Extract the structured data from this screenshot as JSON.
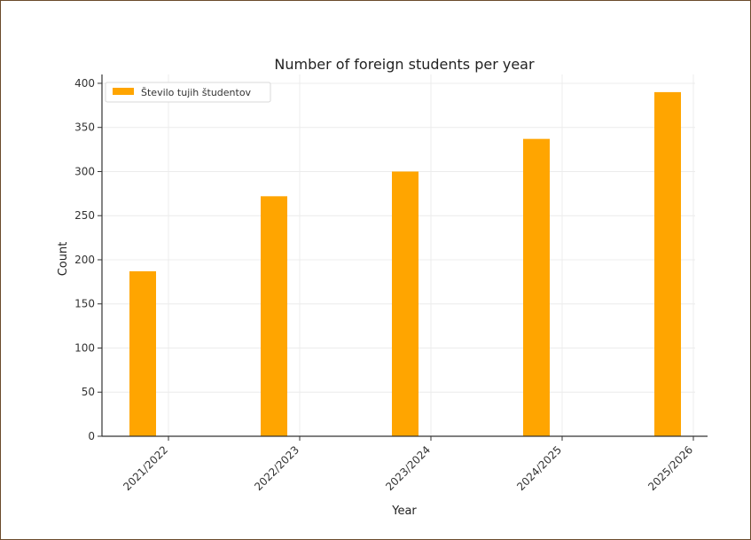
{
  "chart_data": {
    "type": "bar",
    "title": "Number of foreign students per year",
    "xlabel": "Year",
    "ylabel": "Count",
    "categories": [
      "2021/2022",
      "2022/2023",
      "2023/2024",
      "2024/2025",
      "2025/2026"
    ],
    "series": [
      {
        "name": "Število tujih študentov",
        "values": [
          187,
          272,
          300,
          337,
          390
        ],
        "color": "#ffa500"
      }
    ],
    "ylim": [
      0,
      410
    ],
    "yticks": [
      0,
      50,
      100,
      150,
      200,
      250,
      300,
      350,
      400
    ],
    "grid": true,
    "legend_position": "upper-left"
  },
  "colors": {
    "bar": "#ffa500",
    "frame_border": "#6b4a2c",
    "background": "#ffffff"
  }
}
